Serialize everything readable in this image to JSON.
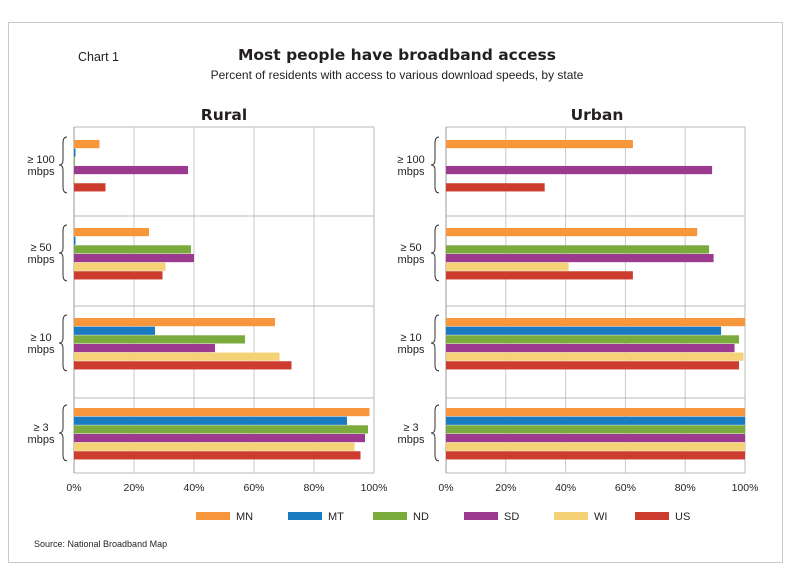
{
  "chart_label": "Chart 1",
  "title": "Most people have broadband access",
  "subtitle": "Percent of residents with access to various download speeds, by state",
  "source": "Source: National Broadband Map",
  "colors": {
    "MN": "#f7963b",
    "MT": "#1b7bc0",
    "ND": "#7bab3c",
    "SD": "#9b3a8e",
    "WI": "#f6d277",
    "US": "#cc3d2f"
  },
  "chart_data": [
    {
      "type": "bar",
      "orientation": "horizontal",
      "panel": "Rural",
      "x_ticks": [
        "0%",
        "20%",
        "40%",
        "60%",
        "80%",
        "100%"
      ],
      "xlim": [
        0,
        100
      ],
      "categories": [
        {
          "line1": "≥ 100",
          "line2": "mbps"
        },
        {
          "line1": "≥ 50",
          "line2": "mbps"
        },
        {
          "line1": "≥ 10",
          "line2": "mbps"
        },
        {
          "line1": "≥  3",
          "line2": "mbps"
        }
      ],
      "series": [
        {
          "name": "MN",
          "values": [
            8.5,
            25,
            67,
            98.5
          ]
        },
        {
          "name": "MT",
          "values": [
            0.5,
            0.5,
            27,
            91
          ]
        },
        {
          "name": "ND",
          "values": [
            0.3,
            39,
            57,
            98
          ]
        },
        {
          "name": "SD",
          "values": [
            38,
            40,
            47,
            97
          ]
        },
        {
          "name": "WI",
          "values": [
            0.3,
            30.5,
            68.5,
            93.5
          ]
        },
        {
          "name": "US",
          "values": [
            10.5,
            29.5,
            72.5,
            95.5
          ]
        }
      ]
    },
    {
      "type": "bar",
      "orientation": "horizontal",
      "panel": "Urban",
      "x_ticks": [
        "0%",
        "20%",
        "40%",
        "60%",
        "80%",
        "100%"
      ],
      "xlim": [
        0,
        100
      ],
      "categories": [
        {
          "line1": "≥ 100",
          "line2": "mbps"
        },
        {
          "line1": "≥ 50",
          "line2": "mbps"
        },
        {
          "line1": "≥ 10",
          "line2": "mbps"
        },
        {
          "line1": "≥  3",
          "line2": "mbps"
        }
      ],
      "series": [
        {
          "name": "MN",
          "values": [
            62.5,
            84,
            100,
            100
          ]
        },
        {
          "name": "MT",
          "values": [
            0,
            0,
            92,
            100
          ]
        },
        {
          "name": "ND",
          "values": [
            0,
            88,
            98,
            100
          ]
        },
        {
          "name": "SD",
          "values": [
            89,
            89.5,
            96.5,
            100
          ]
        },
        {
          "name": "WI",
          "values": [
            0,
            41,
            99.5,
            100
          ]
        },
        {
          "name": "US",
          "values": [
            33,
            62.5,
            98,
            100
          ]
        }
      ]
    }
  ],
  "legend": [
    "MN",
    "MT",
    "ND",
    "SD",
    "WI",
    "US"
  ]
}
